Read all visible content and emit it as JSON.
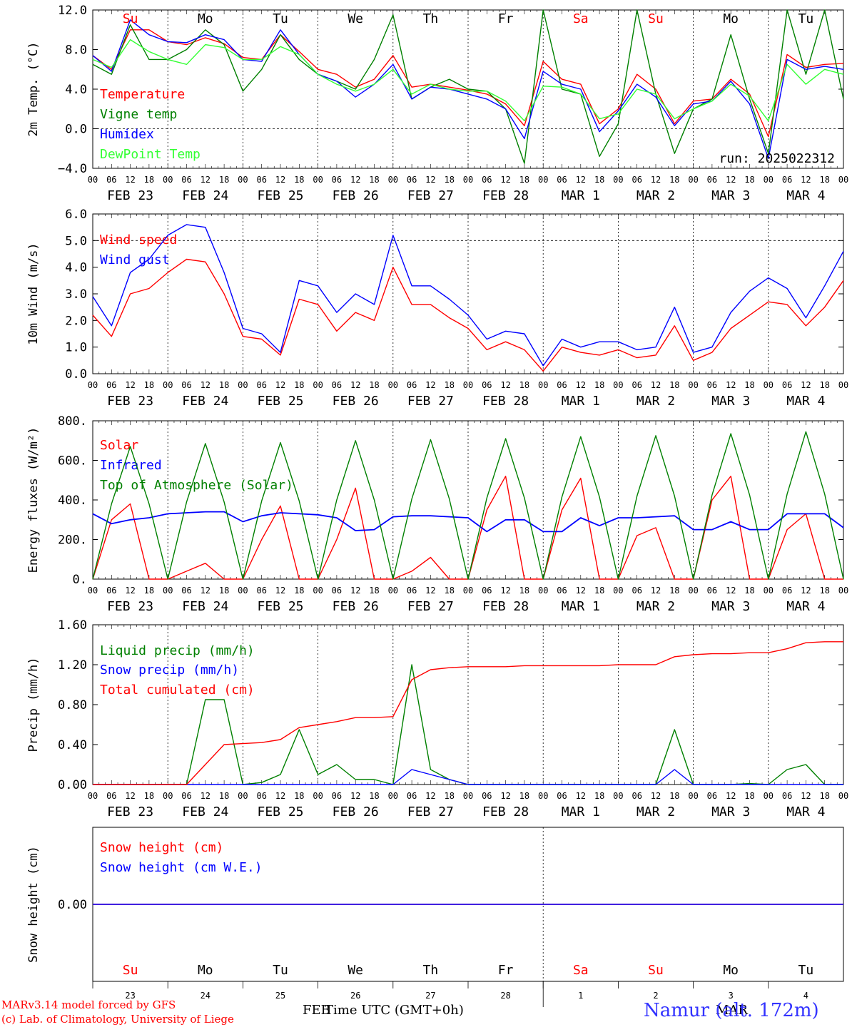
{
  "run_label": "run: 2025022312",
  "footer": {
    "credit1": "MARv3.14 model forced by GFS",
    "credit2": "(c) Lab. of Climatology, University of Liege",
    "xlabel": "Time UTC (GMT+0h)",
    "month_feb": "FEB",
    "month_mar": "MAR",
    "station": "Namur (alt. 172m)"
  },
  "colors": {
    "red": "#ff0000",
    "green": "#008000",
    "blue": "#0000ff",
    "lightgreen": "#33ff33",
    "black": "#000000"
  },
  "days": [
    {
      "dow": "Su",
      "date": "FEB 23",
      "num": "23",
      "weekend": true
    },
    {
      "dow": "Mo",
      "date": "FEB 24",
      "num": "24",
      "weekend": false
    },
    {
      "dow": "Tu",
      "date": "FEB 25",
      "num": "25",
      "weekend": false
    },
    {
      "dow": "We",
      "date": "FEB 26",
      "num": "26",
      "weekend": false
    },
    {
      "dow": "Th",
      "date": "FEB 27",
      "num": "27",
      "weekend": false
    },
    {
      "dow": "Fr",
      "date": "FEB 28",
      "num": "28",
      "weekend": false
    },
    {
      "dow": "Sa",
      "date": "MAR  1",
      "num": "1",
      "weekend": true
    },
    {
      "dow": "Su",
      "date": "MAR  2",
      "num": "2",
      "weekend": true
    },
    {
      "dow": "Mo",
      "date": "MAR  3",
      "num": "3",
      "weekend": false
    },
    {
      "dow": "Tu",
      "date": "MAR  4",
      "num": "4",
      "weekend": false
    }
  ],
  "hour_ticks": [
    "00",
    "06",
    "12",
    "18"
  ],
  "chart_data": [
    {
      "type": "line",
      "ylabel": "2m Temp. (°C)",
      "ylim": [
        -4,
        12
      ],
      "yticks": [
        -4,
        0,
        4,
        8,
        12
      ],
      "ytick_labels": [
        "−4.0",
        "0.0",
        "4.0",
        "8.0",
        "12.0"
      ],
      "ref_line": 0,
      "x_hours": [
        0,
        6,
        12,
        18,
        24,
        30,
        36,
        42,
        48,
        54,
        60,
        66,
        72,
        78,
        84,
        90,
        96,
        102,
        108,
        114,
        120,
        126,
        132,
        138,
        144,
        150,
        156,
        162,
        168,
        174,
        180,
        186,
        192,
        198,
        204,
        210,
        216,
        222,
        228,
        234,
        240
      ],
      "series": [
        {
          "name": "Temperature",
          "color": "#ff0000",
          "values": [
            7.4,
            6.0,
            10.0,
            10.0,
            8.8,
            8.5,
            9.2,
            8.6,
            7.2,
            7.0,
            9.5,
            7.8,
            6.0,
            5.5,
            4.2,
            5.0,
            7.4,
            4.2,
            4.5,
            4.2,
            3.9,
            3.5,
            2.5,
            0.3,
            6.8,
            5.0,
            4.5,
            0.5,
            2.0,
            5.5,
            4.0,
            0.5,
            2.8,
            3.0,
            5.0,
            3.5,
            -0.8,
            7.5,
            6.2,
            6.5,
            6.6
          ]
        },
        {
          "name": "Vigne temp",
          "color": "#008000",
          "values": [
            6.5,
            5.5,
            10.5,
            7.0,
            7.0,
            8.0,
            10.0,
            8.5,
            3.8,
            6.0,
            9.5,
            7.0,
            5.5,
            4.8,
            4.0,
            7.0,
            11.5,
            3.0,
            4.2,
            5.0,
            4.0,
            3.8,
            2.0,
            -3.5,
            12.0,
            4.0,
            3.5,
            -2.8,
            0.5,
            12.0,
            3.5,
            -2.5,
            2.0,
            3.0,
            9.5,
            3.0,
            -2.5,
            12.0,
            5.5,
            12.0,
            3.0
          ]
        },
        {
          "name": "Humidex",
          "color": "#0000ff",
          "values": [
            7.4,
            5.8,
            11.0,
            9.5,
            8.8,
            8.7,
            9.5,
            9.0,
            7.0,
            6.8,
            10.0,
            7.5,
            5.5,
            4.8,
            3.2,
            4.5,
            6.5,
            3.0,
            4.2,
            4.0,
            3.5,
            3.0,
            2.0,
            -1.0,
            5.8,
            4.5,
            4.0,
            -0.3,
            1.8,
            4.5,
            3.2,
            0.3,
            2.5,
            2.8,
            4.8,
            2.5,
            -3.0,
            7.0,
            6.0,
            6.3,
            6.0
          ]
        },
        {
          "name": "DewPoint Temp",
          "color": "#33ff33",
          "values": [
            7.0,
            6.2,
            9.0,
            7.8,
            7.0,
            6.5,
            8.5,
            8.2,
            7.0,
            7.0,
            8.3,
            7.5,
            5.5,
            4.5,
            3.8,
            4.5,
            6.0,
            3.5,
            4.5,
            4.0,
            3.8,
            3.8,
            2.8,
            0.8,
            4.3,
            4.2,
            3.5,
            1.0,
            1.5,
            4.0,
            3.5,
            1.0,
            2.0,
            2.8,
            4.5,
            3.3,
            0.8,
            6.5,
            4.5,
            6.0,
            5.5
          ]
        }
      ]
    },
    {
      "type": "line",
      "ylabel": "10m Wind (m/s)",
      "ylim": [
        0,
        6
      ],
      "yticks": [
        0,
        1,
        2,
        3,
        4,
        5,
        6
      ],
      "ytick_labels": [
        "0.0",
        "1.0",
        "2.0",
        "3.0",
        "4.0",
        "5.0",
        "6.0"
      ],
      "ref_line": 5,
      "x_hours": [
        0,
        6,
        12,
        18,
        24,
        30,
        36,
        42,
        48,
        54,
        60,
        66,
        72,
        78,
        84,
        90,
        96,
        102,
        108,
        114,
        120,
        126,
        132,
        138,
        144,
        150,
        156,
        162,
        168,
        174,
        180,
        186,
        192,
        198,
        204,
        210,
        216,
        222,
        228,
        234,
        240
      ],
      "series": [
        {
          "name": "Wind speed",
          "color": "#ff0000",
          "values": [
            2.2,
            1.4,
            3.0,
            3.2,
            3.8,
            4.3,
            4.2,
            3.0,
            1.4,
            1.3,
            0.7,
            2.8,
            2.6,
            1.6,
            2.3,
            2.0,
            4.0,
            2.6,
            2.6,
            2.1,
            1.7,
            0.9,
            1.2,
            0.9,
            0.1,
            1.0,
            0.8,
            0.7,
            0.9,
            0.6,
            0.7,
            1.8,
            0.5,
            0.8,
            1.7,
            2.2,
            2.7,
            2.6,
            1.8,
            2.5,
            3.5
          ]
        },
        {
          "name": "Wind gust",
          "color": "#0000ff",
          "values": [
            2.9,
            1.8,
            3.8,
            4.3,
            5.2,
            5.6,
            5.5,
            3.8,
            1.7,
            1.5,
            0.8,
            3.5,
            3.3,
            2.3,
            3.0,
            2.6,
            5.2,
            3.3,
            3.3,
            2.8,
            2.2,
            1.3,
            1.6,
            1.5,
            0.3,
            1.3,
            1.0,
            1.2,
            1.2,
            0.9,
            1.0,
            2.5,
            0.8,
            1.0,
            2.3,
            3.1,
            3.6,
            3.2,
            2.1,
            3.3,
            4.6
          ]
        }
      ]
    },
    {
      "type": "line",
      "ylabel": "Energy fluxes (W/m²)",
      "ylim": [
        0,
        800
      ],
      "yticks": [
        0,
        200,
        400,
        600,
        800
      ],
      "ytick_labels": [
        "0.",
        "200.",
        "400.",
        "600.",
        "800."
      ],
      "ref_line": null,
      "x_hours": [
        0,
        6,
        12,
        18,
        24,
        30,
        36,
        42,
        48,
        54,
        60,
        66,
        72,
        78,
        84,
        90,
        96,
        102,
        108,
        114,
        120,
        126,
        132,
        138,
        144,
        150,
        156,
        162,
        168,
        174,
        180,
        186,
        192,
        198,
        204,
        210,
        216,
        222,
        228,
        234,
        240
      ],
      "series": [
        {
          "name": "Solar",
          "color": "#ff0000",
          "values": [
            0,
            300,
            380,
            0,
            0,
            40,
            80,
            0,
            0,
            200,
            370,
            0,
            0,
            200,
            460,
            0,
            0,
            40,
            110,
            0,
            0,
            350,
            520,
            0,
            0,
            350,
            510,
            0,
            0,
            220,
            260,
            0,
            0,
            400,
            520,
            0,
            0,
            250,
            330,
            0,
            0
          ]
        },
        {
          "name": "Infrared",
          "color": "#0000ff",
          "values": [
            330,
            280,
            300,
            310,
            330,
            335,
            340,
            340,
            290,
            320,
            335,
            330,
            325,
            310,
            245,
            250,
            315,
            320,
            320,
            315,
            310,
            240,
            300,
            300,
            240,
            240,
            310,
            270,
            310,
            310,
            315,
            320,
            250,
            250,
            290,
            250,
            250,
            330,
            330,
            330,
            260
          ]
        },
        {
          "name": "Top of Atmosphere (Solar)",
          "color": "#008000",
          "values": [
            0,
            380,
            670,
            380,
            0,
            390,
            685,
            390,
            0,
            395,
            690,
            395,
            0,
            400,
            700,
            400,
            0,
            405,
            705,
            405,
            0,
            410,
            710,
            410,
            0,
            415,
            720,
            415,
            0,
            420,
            725,
            420,
            0,
            425,
            735,
            425,
            0,
            430,
            745,
            430,
            0
          ]
        }
      ]
    },
    {
      "type": "line",
      "ylabel": "Precip (mm/h)",
      "ylim": [
        0,
        1.6
      ],
      "yticks": [
        0,
        0.4,
        0.8,
        1.2,
        1.6
      ],
      "ytick_labels": [
        "0.00",
        "0.40",
        "0.80",
        "1.20",
        "1.60"
      ],
      "ref_line": null,
      "x_hours": [
        0,
        6,
        12,
        18,
        24,
        30,
        36,
        42,
        48,
        54,
        60,
        66,
        72,
        78,
        84,
        90,
        96,
        102,
        108,
        114,
        120,
        126,
        132,
        138,
        144,
        150,
        156,
        162,
        168,
        174,
        180,
        186,
        192,
        198,
        204,
        210,
        216,
        222,
        228,
        234,
        240
      ],
      "series": [
        {
          "name": "Liquid precip (mm/h)",
          "color": "#008000",
          "values": [
            0,
            0,
            0,
            0,
            0,
            0,
            0.85,
            0.85,
            0,
            0.02,
            0.1,
            0.55,
            0.1,
            0.2,
            0.05,
            0.05,
            0,
            1.2,
            0.15,
            0.05,
            0,
            0,
            0,
            0,
            0,
            0,
            0,
            0,
            0,
            0,
            0,
            0.55,
            0,
            0,
            0,
            0.01,
            0,
            0.15,
            0.2,
            0,
            0
          ]
        },
        {
          "name": "Snow precip (mm/h)",
          "color": "#0000ff",
          "values": [
            0,
            0,
            0,
            0,
            0,
            0,
            0,
            0,
            0,
            0,
            0,
            0,
            0,
            0,
            0,
            0,
            0,
            0.15,
            0.1,
            0.05,
            0,
            0,
            0,
            0,
            0,
            0,
            0,
            0,
            0,
            0,
            0,
            0.15,
            0,
            0,
            0,
            0,
            0,
            0,
            0,
            0,
            0
          ]
        },
        {
          "name": "Total cumulated (cm)",
          "color": "#ff0000",
          "values": [
            0,
            0,
            0,
            0,
            0,
            0,
            0.2,
            0.4,
            0.41,
            0.42,
            0.45,
            0.57,
            0.6,
            0.63,
            0.67,
            0.67,
            0.68,
            1.05,
            1.15,
            1.17,
            1.18,
            1.18,
            1.18,
            1.19,
            1.19,
            1.19,
            1.19,
            1.19,
            1.2,
            1.2,
            1.2,
            1.28,
            1.3,
            1.31,
            1.31,
            1.32,
            1.32,
            1.36,
            1.42,
            1.43,
            1.43
          ]
        }
      ]
    },
    {
      "type": "line",
      "ylabel": "Snow height (cm)",
      "ylim": [
        -1,
        1
      ],
      "yticks": [
        0
      ],
      "ytick_labels": [
        "0.00"
      ],
      "ref_line": null,
      "x_hours": [
        0,
        240
      ],
      "series": [
        {
          "name": "Snow height (cm)",
          "color": "#ff0000",
          "values": [
            0,
            0
          ]
        },
        {
          "name": "Snow height (cm W.E.)",
          "color": "#0000ff",
          "values": [
            0,
            0
          ]
        }
      ]
    }
  ]
}
